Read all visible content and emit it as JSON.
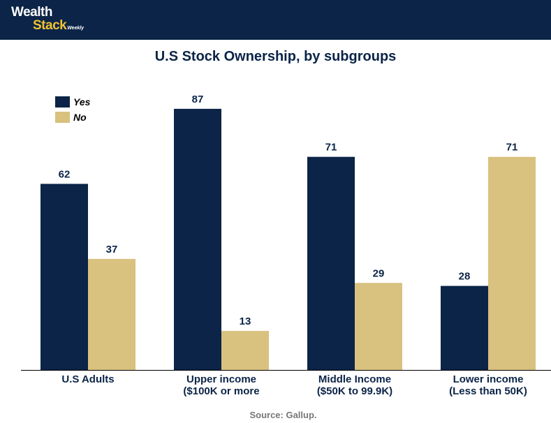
{
  "brand": {
    "name_line1": "Wealth",
    "name_line2": "Stack",
    "tagline": "Weekly"
  },
  "colors": {
    "header_bg": "#0b2447",
    "brand_accent": "#f2c232",
    "yes": "#0b2447",
    "no": "#d9c17f",
    "text": "#0b2447"
  },
  "source": "Source: Gallup.",
  "chart_data": {
    "type": "bar",
    "title": "U.S Stock Ownership, by subgroups",
    "xlabel": "",
    "ylabel": "",
    "ylim": [
      0,
      100
    ],
    "grid": false,
    "legend_position": "top-left",
    "categories": [
      [
        "U.S Adults"
      ],
      [
        "Upper income",
        "($100K or more"
      ],
      [
        "Middle Income",
        "($50K to 99.9K)"
      ],
      [
        "Lower income",
        "(Less than 50K)"
      ]
    ],
    "series": [
      {
        "name": "Yes",
        "values": [
          62,
          87,
          71,
          28
        ],
        "color": "#0b2447"
      },
      {
        "name": "No",
        "values": [
          37,
          13,
          29,
          71
        ],
        "color": "#d9c17f"
      }
    ]
  }
}
